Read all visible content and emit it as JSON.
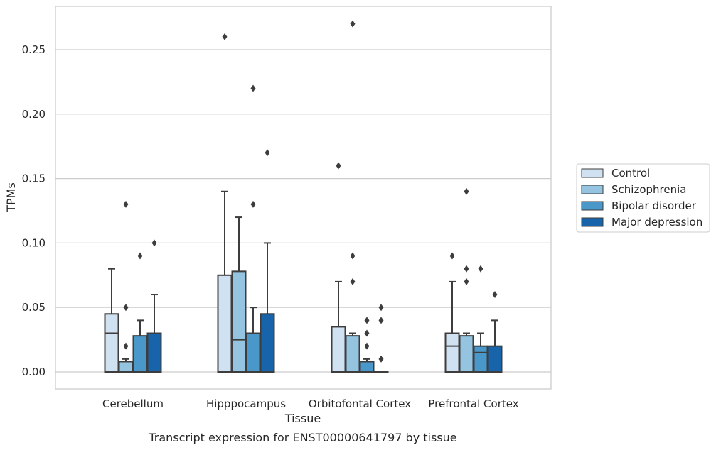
{
  "chart_data": {
    "type": "box",
    "caption": "Transcript expression for ENST00000641797 by tissue",
    "xlabel": "Tissue",
    "ylabel": "TPMs",
    "ylim": [
      -0.013,
      0.285
    ],
    "yticks": [
      0.0,
      0.05,
      0.1,
      0.15,
      0.2,
      0.25
    ],
    "ytick_labels": [
      "0.00",
      "0.05",
      "0.10",
      "0.15",
      "0.20",
      "0.25"
    ],
    "grid": true,
    "legend_position": "right",
    "categories": [
      "Cerebellum",
      "Hipppocampus",
      "Orbitofontal Cortex",
      "Prefrontal Cortex"
    ],
    "series": [
      {
        "name": "Control",
        "color": "#d0e1f2",
        "boxes": [
          {
            "q1": 0.0,
            "median": 0.03,
            "q3": 0.045,
            "whisker_low": 0.0,
            "whisker_high": 0.08,
            "outliers": []
          },
          {
            "q1": 0.0,
            "median": 0.0,
            "q3": 0.075,
            "whisker_low": 0.0,
            "whisker_high": 0.14,
            "outliers": [
              0.26
            ]
          },
          {
            "q1": 0.0,
            "median": 0.0,
            "q3": 0.035,
            "whisker_low": 0.0,
            "whisker_high": 0.07,
            "outliers": [
              0.16
            ]
          },
          {
            "q1": 0.0,
            "median": 0.02,
            "q3": 0.03,
            "whisker_low": 0.0,
            "whisker_high": 0.07,
            "outliers": [
              0.09
            ]
          }
        ]
      },
      {
        "name": "Schizophrenia",
        "color": "#94c4df",
        "boxes": [
          {
            "q1": 0.0,
            "median": 0.0,
            "q3": 0.008,
            "whisker_low": 0.0,
            "whisker_high": 0.01,
            "outliers": [
              0.02,
              0.05,
              0.13
            ]
          },
          {
            "q1": 0.0,
            "median": 0.025,
            "q3": 0.078,
            "whisker_low": 0.0,
            "whisker_high": 0.12,
            "outliers": []
          },
          {
            "q1": 0.0,
            "median": 0.0,
            "q3": 0.028,
            "whisker_low": 0.0,
            "whisker_high": 0.03,
            "outliers": [
              0.07,
              0.09,
              0.27
            ]
          },
          {
            "q1": 0.0,
            "median": 0.0,
            "q3": 0.028,
            "whisker_low": 0.0,
            "whisker_high": 0.03,
            "outliers": [
              0.07,
              0.08,
              0.14
            ]
          }
        ]
      },
      {
        "name": "Bipolar disorder",
        "color": "#4a98c9",
        "boxes": [
          {
            "q1": 0.0,
            "median": 0.0,
            "q3": 0.028,
            "whisker_low": 0.0,
            "whisker_high": 0.04,
            "outliers": [
              0.09
            ]
          },
          {
            "q1": 0.0,
            "median": 0.0,
            "q3": 0.03,
            "whisker_low": 0.0,
            "whisker_high": 0.05,
            "outliers": [
              0.13,
              0.22
            ]
          },
          {
            "q1": 0.0,
            "median": 0.0,
            "q3": 0.008,
            "whisker_low": 0.0,
            "whisker_high": 0.01,
            "outliers": [
              0.02,
              0.03,
              0.04
            ]
          },
          {
            "q1": 0.0,
            "median": 0.015,
            "q3": 0.02,
            "whisker_low": 0.0,
            "whisker_high": 0.03,
            "outliers": [
              0.08
            ]
          }
        ]
      },
      {
        "name": "Major depression",
        "color": "#1764ab",
        "boxes": [
          {
            "q1": 0.0,
            "median": 0.0,
            "q3": 0.03,
            "whisker_low": 0.0,
            "whisker_high": 0.06,
            "outliers": [
              0.1
            ]
          },
          {
            "q1": 0.0,
            "median": 0.0,
            "q3": 0.045,
            "whisker_low": 0.0,
            "whisker_high": 0.1,
            "outliers": [
              0.17
            ]
          },
          {
            "q1": 0.0,
            "median": 0.0,
            "q3": 0.0,
            "whisker_low": 0.0,
            "whisker_high": 0.0,
            "outliers": [
              0.01,
              0.04,
              0.05
            ]
          },
          {
            "q1": 0.0,
            "median": 0.0,
            "q3": 0.02,
            "whisker_low": 0.0,
            "whisker_high": 0.04,
            "outliers": [
              0.06
            ]
          }
        ]
      }
    ]
  }
}
